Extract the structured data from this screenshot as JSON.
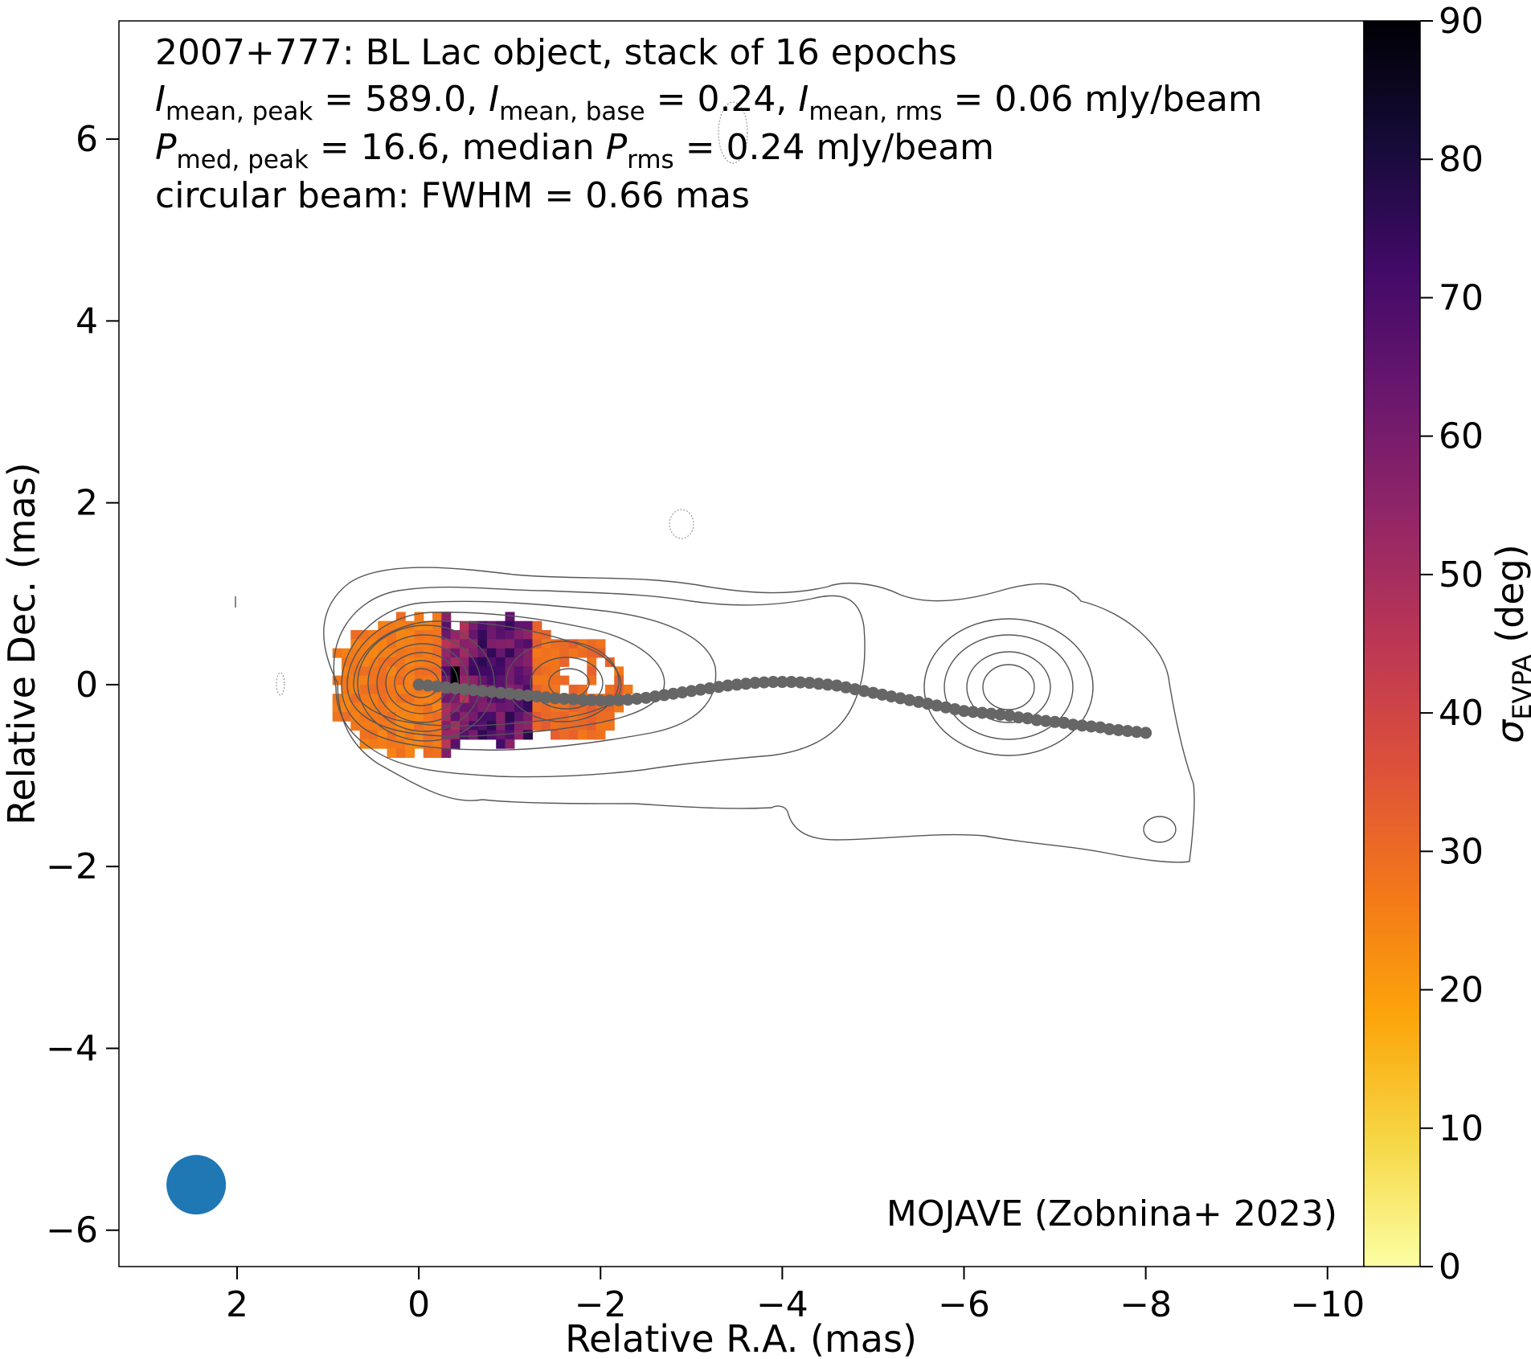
{
  "chart_data": {
    "type": "heatmap",
    "source": "2007+777",
    "annotation_lines": [
      [
        {
          "t": "2007+777: BL Lac object, stack of 16 epochs"
        }
      ],
      [
        {
          "t": "I",
          "i": true
        },
        {
          "t": "mean, peak",
          "sub": true
        },
        {
          "t": " = 589.0, "
        },
        {
          "t": "I",
          "i": true
        },
        {
          "t": "mean, base",
          "sub": true
        },
        {
          "t": " = 0.24, "
        },
        {
          "t": "I",
          "i": true
        },
        {
          "t": "mean, rms",
          "sub": true
        },
        {
          "t": " = 0.06 mJy/beam"
        }
      ],
      [
        {
          "t": "P",
          "i": true
        },
        {
          "t": "med, peak",
          "sub": true
        },
        {
          "t": " = 16.6, median "
        },
        {
          "t": "P",
          "i": true
        },
        {
          "t": "rms",
          "sub": true
        },
        {
          "t": " = 0.24 mJy/beam"
        }
      ],
      [
        {
          "t": "circular beam: FWHM = 0.66 mas"
        }
      ]
    ],
    "credit": "MOJAVE (Zobnina+ 2023)",
    "xlabel": "Relative R.A. (mas)",
    "ylabel": "Relative Dec. (mas)",
    "xlim": [
      3.3,
      -10.4
    ],
    "ylim": [
      -6.4,
      7.3
    ],
    "xticks": [
      2,
      0,
      -2,
      -4,
      -6,
      -8,
      -10
    ],
    "yticks": [
      -6,
      -4,
      -2,
      0,
      2,
      4,
      6
    ],
    "xtick_labels": [
      "2",
      "0",
      "−2",
      "−4",
      "−6",
      "−8",
      "−10"
    ],
    "ytick_labels": [
      "−6",
      "−4",
      "−2",
      "0",
      "2",
      "4",
      "6"
    ],
    "colorbar": {
      "label_symbol": "σ",
      "label_sub": "EVPA",
      "label_unit": " (deg)",
      "range": [
        0,
        90
      ],
      "ticks": [
        0,
        10,
        20,
        30,
        40,
        50,
        60,
        70,
        80,
        90
      ],
      "tick_labels": [
        "0",
        "10",
        "20",
        "30",
        "40",
        "50",
        "60",
        "70",
        "80",
        "90"
      ],
      "colormap": "inferno_r"
    },
    "beam": {
      "center": [
        2.45,
        -5.5
      ],
      "fwhm_mas": 0.66,
      "color": "#1f77b4"
    },
    "ridgeline": {
      "color": "#666666",
      "x": [
        0.0,
        -0.1,
        -0.2,
        -0.3,
        -0.4,
        -0.5,
        -0.6,
        -0.7,
        -0.8,
        -0.9,
        -1.0,
        -1.1,
        -1.2,
        -1.3,
        -1.4,
        -1.5,
        -1.6,
        -1.7,
        -1.8,
        -1.9,
        -2.0,
        -2.1,
        -2.2,
        -2.3,
        -2.4,
        -2.5,
        -2.6,
        -2.7,
        -2.8,
        -2.9,
        -3.0,
        -3.1,
        -3.2,
        -3.3,
        -3.4,
        -3.5,
        -3.6,
        -3.7,
        -3.8,
        -3.9,
        -4.0,
        -4.1,
        -4.2,
        -4.3,
        -4.4,
        -4.5,
        -4.6,
        -4.7,
        -4.8,
        -4.9,
        -5.0,
        -5.1,
        -5.2,
        -5.3,
        -5.4,
        -5.5,
        -5.6,
        -5.7,
        -5.8,
        -5.9,
        -6.0,
        -6.1,
        -6.2,
        -6.3,
        -6.4,
        -6.5,
        -6.6,
        -6.7,
        -6.8,
        -6.9,
        -7.0,
        -7.1,
        -7.2,
        -7.3,
        -7.4,
        -7.5,
        -7.6,
        -7.7,
        -7.8,
        -7.9,
        -8.0
      ],
      "y": [
        0.0,
        -0.01,
        -0.02,
        -0.03,
        -0.04,
        -0.05,
        -0.06,
        -0.07,
        -0.08,
        -0.09,
        -0.1,
        -0.11,
        -0.12,
        -0.13,
        -0.14,
        -0.15,
        -0.155,
        -0.16,
        -0.165,
        -0.17,
        -0.175,
        -0.175,
        -0.17,
        -0.165,
        -0.155,
        -0.145,
        -0.13,
        -0.115,
        -0.1,
        -0.085,
        -0.07,
        -0.055,
        -0.04,
        -0.025,
        -0.01,
        0.0,
        0.01,
        0.02,
        0.025,
        0.03,
        0.03,
        0.03,
        0.025,
        0.02,
        0.01,
        0.0,
        -0.01,
        -0.03,
        -0.05,
        -0.07,
        -0.09,
        -0.11,
        -0.13,
        -0.15,
        -0.17,
        -0.19,
        -0.21,
        -0.23,
        -0.25,
        -0.27,
        -0.29,
        -0.3,
        -0.31,
        -0.32,
        -0.33,
        -0.34,
        -0.36,
        -0.37,
        -0.39,
        -0.4,
        -0.41,
        -0.42,
        -0.44,
        -0.45,
        -0.46,
        -0.47,
        -0.49,
        -0.5,
        -0.51,
        -0.52,
        -0.53
      ]
    }
  }
}
